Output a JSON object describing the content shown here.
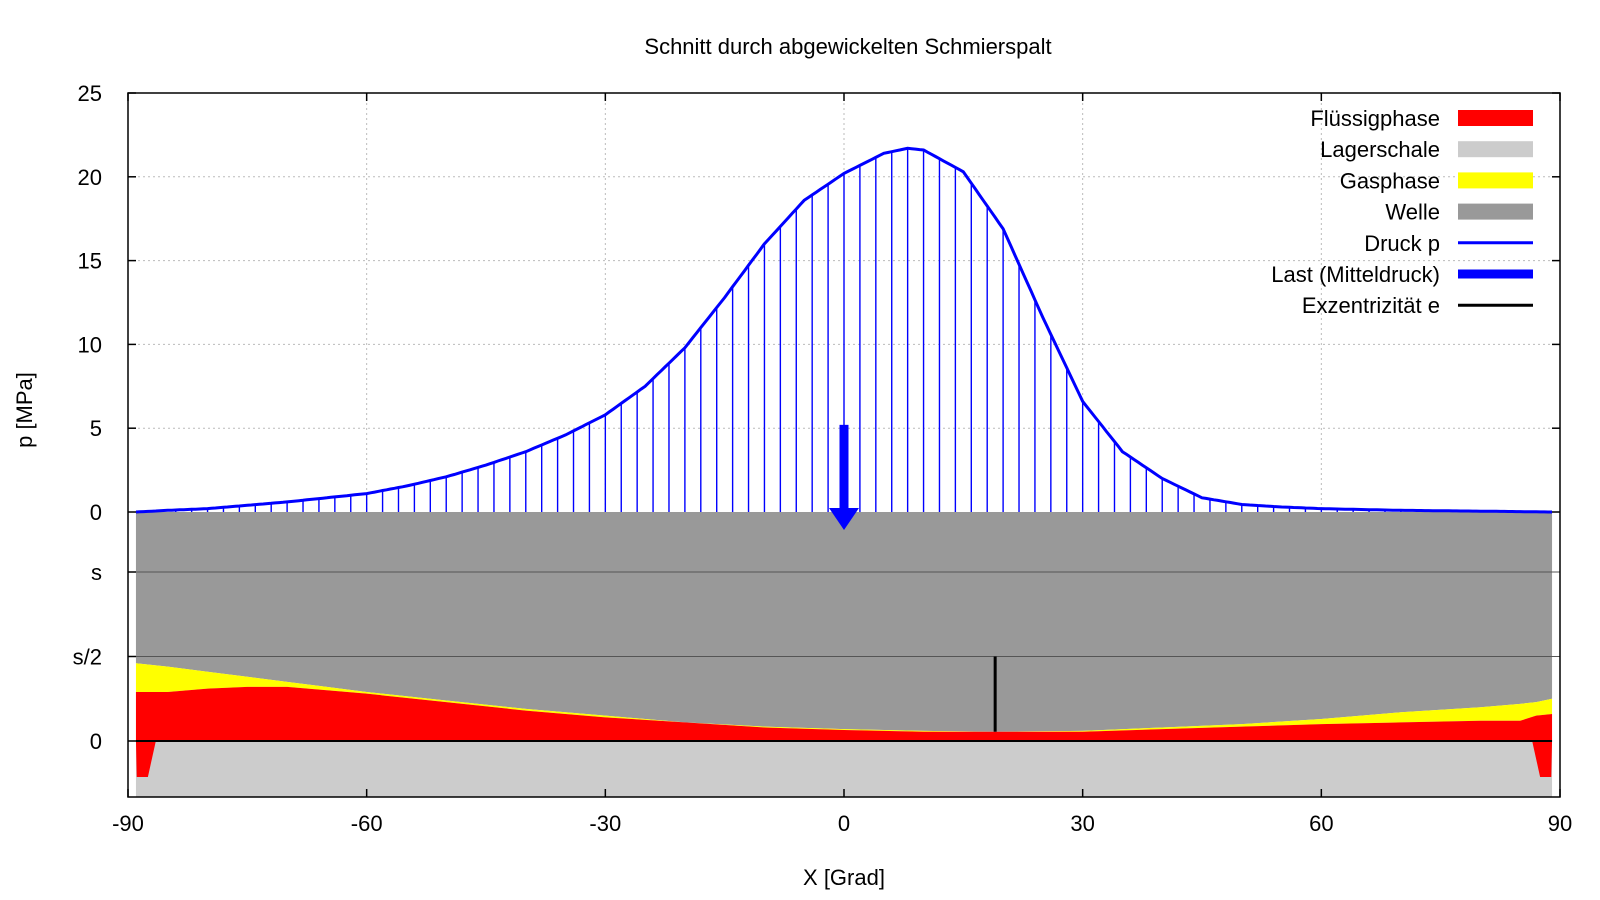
{
  "chart_data": {
    "type": "area",
    "title": "Schnitt durch abgewickelten Schmierspalt",
    "xlabel": "X [Grad]",
    "ylabel": "p [MPa]",
    "xlim": [
      -90,
      90
    ],
    "ylim_pressure": [
      0,
      25
    ],
    "x_ticks": [
      "-90",
      "-60",
      "-30",
      "0",
      "30",
      "60",
      "90"
    ],
    "y_ticks_pressure": [
      "0",
      "5",
      "10",
      "15",
      "20",
      "25"
    ],
    "y_ticks_gap": [
      "0",
      "s/2",
      "s"
    ],
    "gap_range": [
      0,
      1
    ],
    "grid": true,
    "legend_position": "top-right",
    "legend": [
      {
        "label": "Flüssigphase",
        "color": "#ff0000",
        "kind": "fill"
      },
      {
        "label": "Lagerschale",
        "color": "#cccccc",
        "kind": "fill"
      },
      {
        "label": "Gasphase",
        "color": "#ffff00",
        "kind": "fill"
      },
      {
        "label": "Welle",
        "color": "#999999",
        "kind": "fill"
      },
      {
        "label": "Druck p",
        "color": "#0000ff",
        "kind": "line"
      },
      {
        "label": "Last (Mitteldruck)",
        "color": "#0000ff",
        "kind": "thick-line"
      },
      {
        "label": "Exzentrizität e",
        "color": "#000000",
        "kind": "line"
      }
    ],
    "pressure": {
      "name": "Druck p",
      "x": [
        -89,
        -85,
        -80,
        -75,
        -70,
        -65,
        -60,
        -55,
        -50,
        -45,
        -40,
        -35,
        -30,
        -25,
        -20,
        -15,
        -10,
        -5,
        0,
        5,
        8,
        10,
        15,
        20,
        25,
        30,
        35,
        40,
        45,
        50,
        55,
        60,
        70,
        80,
        89
      ],
      "y": [
        0.0,
        0.1,
        0.2,
        0.4,
        0.6,
        0.85,
        1.1,
        1.55,
        2.1,
        2.8,
        3.6,
        4.6,
        5.8,
        7.5,
        9.8,
        12.8,
        16.0,
        18.6,
        20.2,
        21.4,
        21.7,
        21.6,
        20.3,
        16.9,
        11.6,
        6.6,
        3.6,
        2.0,
        0.85,
        0.45,
        0.3,
        0.2,
        0.1,
        0.05,
        0.0
      ]
    },
    "load": {
      "name": "Last (Mitteldruck)",
      "x": 0,
      "y": 5.2
    },
    "gap": {
      "x": [
        -89,
        -85,
        -80,
        -75,
        -70,
        -65,
        -60,
        -50,
        -40,
        -30,
        -20,
        -10,
        0,
        10,
        19,
        30,
        40,
        50,
        60,
        70,
        80,
        85,
        87,
        89
      ],
      "h": [
        0.46,
        0.44,
        0.41,
        0.38,
        0.35,
        0.32,
        0.29,
        0.24,
        0.19,
        0.15,
        0.11,
        0.085,
        0.07,
        0.06,
        0.055,
        0.06,
        0.08,
        0.1,
        0.13,
        0.17,
        0.2,
        0.22,
        0.23,
        0.25
      ],
      "liquid": [
        0.29,
        0.29,
        0.31,
        0.32,
        0.32,
        0.3,
        0.28,
        0.23,
        0.18,
        0.14,
        0.11,
        0.08,
        0.065,
        0.055,
        0.055,
        0.055,
        0.07,
        0.085,
        0.1,
        0.11,
        0.12,
        0.12,
        0.15,
        0.16
      ]
    },
    "eccentricity": {
      "name": "Exzentrizität e",
      "x": 19,
      "h": 0.055,
      "top": 0.5
    },
    "bearing_pockets": [
      {
        "x1": -89.0,
        "x2": -86.5,
        "x3": -87.5,
        "x4": -88.9
      },
      {
        "x1": 86.5,
        "x2": 89.0,
        "x3": 88.9,
        "x4": 87.5
      }
    ],
    "colors": {
      "liquid": "#ff0000",
      "gas": "#ffff00",
      "shell": "#cccccc",
      "shaft": "#999999",
      "pressure": "#0000ff",
      "eccentricity": "#000000",
      "grid": "#bbbbbb"
    }
  }
}
